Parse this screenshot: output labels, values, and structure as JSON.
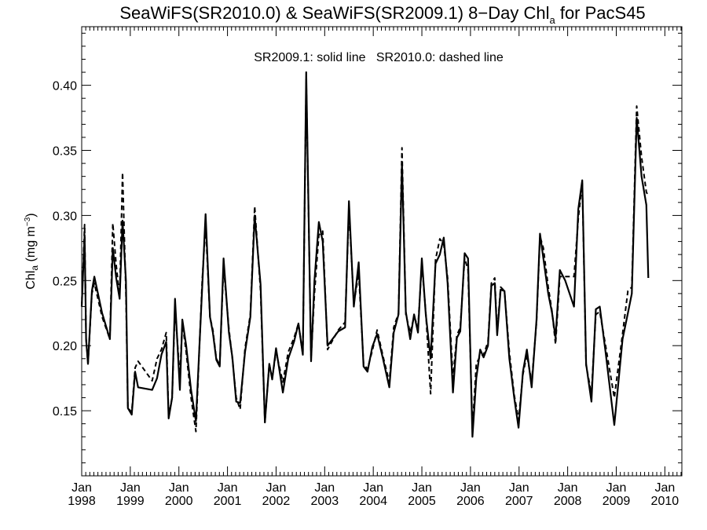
{
  "chart_data": {
    "type": "line",
    "title": {
      "prefix": "SeaWiFS(SR2010.0) & SeaWiFS(SR2009.1) 8−Day Chl",
      "subscript": "a",
      "suffix": " for PacS45"
    },
    "subtitle": "SR2009.1: solid line   SR2010.0: dashed line",
    "ylabel": {
      "prefix": "Chl",
      "subscript": "a",
      "units_prefix": " (mg m",
      "units_superscript": "−3",
      "units_suffix": ")"
    },
    "xlim": [
      1998.0,
      2010.35
    ],
    "ylim": [
      0.1,
      0.445
    ],
    "y_ticks": [
      {
        "value": 0.15,
        "label": "0.15"
      },
      {
        "value": 0.2,
        "label": "0.20"
      },
      {
        "value": 0.25,
        "label": "0.25"
      },
      {
        "value": 0.3,
        "label": "0.30"
      },
      {
        "value": 0.35,
        "label": "0.35"
      },
      {
        "value": 0.4,
        "label": "0.40"
      }
    ],
    "x_ticks": [
      {
        "value": 1998,
        "month": "Jan",
        "year": "1998"
      },
      {
        "value": 1999,
        "month": "Jan",
        "year": "1999"
      },
      {
        "value": 2000,
        "month": "Jan",
        "year": "2000"
      },
      {
        "value": 2001,
        "month": "Jan",
        "year": "2001"
      },
      {
        "value": 2002,
        "month": "Jan",
        "year": "2002"
      },
      {
        "value": 2003,
        "month": "Jan",
        "year": "2003"
      },
      {
        "value": 2004,
        "month": "Jan",
        "year": "2004"
      },
      {
        "value": 2005,
        "month": "Jan",
        "year": "2005"
      },
      {
        "value": 2006,
        "month": "Jan",
        "year": "2006"
      },
      {
        "value": 2007,
        "month": "Jan",
        "year": "2007"
      },
      {
        "value": 2008,
        "month": "Jan",
        "year": "2008"
      },
      {
        "value": 2009,
        "month": "Jan",
        "year": "2009"
      },
      {
        "value": 2010,
        "month": "Jan",
        "year": "2010"
      }
    ],
    "series": [
      {
        "style": "solid",
        "points": [
          [
            1998.0,
            0.23
          ],
          [
            1998.06,
            0.285
          ],
          [
            1998.09,
            0.205
          ],
          [
            1998.13,
            0.186
          ],
          [
            1998.21,
            0.242
          ],
          [
            1998.26,
            0.253
          ],
          [
            1998.42,
            0.225
          ],
          [
            1998.58,
            0.205
          ],
          [
            1998.64,
            0.275
          ],
          [
            1998.71,
            0.252
          ],
          [
            1998.78,
            0.236
          ],
          [
            1998.84,
            0.296
          ],
          [
            1998.91,
            0.25
          ],
          [
            1998.95,
            0.152
          ],
          [
            1999.03,
            0.147
          ],
          [
            1999.1,
            0.18
          ],
          [
            1999.16,
            0.168
          ],
          [
            1999.45,
            0.166
          ],
          [
            1999.55,
            0.175
          ],
          [
            1999.64,
            0.193
          ],
          [
            1999.74,
            0.203
          ],
          [
            1999.79,
            0.144
          ],
          [
            1999.86,
            0.16
          ],
          [
            1999.92,
            0.236
          ],
          [
            2000.02,
            0.166
          ],
          [
            2000.07,
            0.22
          ],
          [
            2000.15,
            0.2
          ],
          [
            2000.25,
            0.166
          ],
          [
            2000.35,
            0.142
          ],
          [
            2000.48,
            0.245
          ],
          [
            2000.55,
            0.301
          ],
          [
            2000.64,
            0.222
          ],
          [
            2000.7,
            0.21
          ],
          [
            2000.77,
            0.189
          ],
          [
            2000.84,
            0.184
          ],
          [
            2000.92,
            0.267
          ],
          [
            2001.03,
            0.21
          ],
          [
            2001.1,
            0.191
          ],
          [
            2001.18,
            0.157
          ],
          [
            2001.26,
            0.156
          ],
          [
            2001.36,
            0.195
          ],
          [
            2001.47,
            0.222
          ],
          [
            2001.56,
            0.3
          ],
          [
            2001.68,
            0.247
          ],
          [
            2001.77,
            0.141
          ],
          [
            2001.86,
            0.186
          ],
          [
            2001.92,
            0.174
          ],
          [
            2002.0,
            0.198
          ],
          [
            2002.14,
            0.164
          ],
          [
            2002.25,
            0.19
          ],
          [
            2002.37,
            0.203
          ],
          [
            2002.46,
            0.217
          ],
          [
            2002.55,
            0.193
          ],
          [
            2002.62,
            0.41
          ],
          [
            2002.72,
            0.188
          ],
          [
            2002.79,
            0.25
          ],
          [
            2002.88,
            0.295
          ],
          [
            2002.96,
            0.28
          ],
          [
            2003.06,
            0.2
          ],
          [
            2003.28,
            0.211
          ],
          [
            2003.42,
            0.214
          ],
          [
            2003.5,
            0.311
          ],
          [
            2003.6,
            0.23
          ],
          [
            2003.7,
            0.264
          ],
          [
            2003.8,
            0.184
          ],
          [
            2003.88,
            0.18
          ],
          [
            2003.98,
            0.199
          ],
          [
            2004.08,
            0.209
          ],
          [
            2004.2,
            0.19
          ],
          [
            2004.33,
            0.168
          ],
          [
            2004.42,
            0.21
          ],
          [
            2004.52,
            0.224
          ],
          [
            2004.59,
            0.34
          ],
          [
            2004.67,
            0.226
          ],
          [
            2004.76,
            0.205
          ],
          [
            2004.84,
            0.224
          ],
          [
            2004.92,
            0.21
          ],
          [
            2005.0,
            0.267
          ],
          [
            2005.08,
            0.224
          ],
          [
            2005.18,
            0.19
          ],
          [
            2005.28,
            0.263
          ],
          [
            2005.37,
            0.27
          ],
          [
            2005.45,
            0.283
          ],
          [
            2005.53,
            0.248
          ],
          [
            2005.64,
            0.164
          ],
          [
            2005.72,
            0.206
          ],
          [
            2005.79,
            0.211
          ],
          [
            2005.88,
            0.271
          ],
          [
            2005.95,
            0.267
          ],
          [
            2006.04,
            0.13
          ],
          [
            2006.12,
            0.175
          ],
          [
            2006.2,
            0.197
          ],
          [
            2006.27,
            0.191
          ],
          [
            2006.36,
            0.2
          ],
          [
            2006.43,
            0.246
          ],
          [
            2006.5,
            0.248
          ],
          [
            2006.55,
            0.208
          ],
          [
            2006.62,
            0.243
          ],
          [
            2006.7,
            0.242
          ],
          [
            2006.8,
            0.19
          ],
          [
            2006.9,
            0.16
          ],
          [
            2006.99,
            0.137
          ],
          [
            2007.08,
            0.18
          ],
          [
            2007.16,
            0.197
          ],
          [
            2007.26,
            0.168
          ],
          [
            2007.36,
            0.22
          ],
          [
            2007.43,
            0.286
          ],
          [
            2007.5,
            0.267
          ],
          [
            2007.6,
            0.24
          ],
          [
            2007.68,
            0.225
          ],
          [
            2007.75,
            0.206
          ],
          [
            2007.84,
            0.258
          ],
          [
            2007.95,
            0.25
          ],
          [
            2008.13,
            0.23
          ],
          [
            2008.22,
            0.305
          ],
          [
            2008.3,
            0.327
          ],
          [
            2008.38,
            0.186
          ],
          [
            2008.49,
            0.157
          ],
          [
            2008.58,
            0.228
          ],
          [
            2008.66,
            0.23
          ],
          [
            2008.78,
            0.195
          ],
          [
            2008.96,
            0.139
          ],
          [
            2009.13,
            0.205
          ],
          [
            2009.24,
            0.225
          ],
          [
            2009.32,
            0.24
          ],
          [
            2009.42,
            0.375
          ],
          [
            2009.52,
            0.33
          ],
          [
            2009.62,
            0.308
          ],
          [
            2009.66,
            0.252
          ]
        ]
      },
      {
        "style": "dashed",
        "points": [
          [
            1998.0,
            0.23
          ],
          [
            1998.06,
            0.293
          ],
          [
            1998.09,
            0.205
          ],
          [
            1998.13,
            0.186
          ],
          [
            1998.21,
            0.24
          ],
          [
            1998.26,
            0.248
          ],
          [
            1998.42,
            0.222
          ],
          [
            1998.58,
            0.205
          ],
          [
            1998.64,
            0.294
          ],
          [
            1998.71,
            0.262
          ],
          [
            1998.78,
            0.238
          ],
          [
            1998.84,
            0.333
          ],
          [
            1998.91,
            0.24
          ],
          [
            1998.95,
            0.152
          ],
          [
            1999.03,
            0.149
          ],
          [
            1999.1,
            0.183
          ],
          [
            1999.16,
            0.188
          ],
          [
            1999.45,
            0.173
          ],
          [
            1999.55,
            0.19
          ],
          [
            1999.64,
            0.197
          ],
          [
            1999.74,
            0.21
          ],
          [
            1999.79,
            0.146
          ],
          [
            1999.86,
            0.16
          ],
          [
            1999.92,
            0.23
          ],
          [
            2000.02,
            0.175
          ],
          [
            2000.07,
            0.218
          ],
          [
            2000.15,
            0.195
          ],
          [
            2000.25,
            0.16
          ],
          [
            2000.35,
            0.134
          ],
          [
            2000.48,
            0.25
          ],
          [
            2000.55,
            0.293
          ],
          [
            2000.64,
            0.222
          ],
          [
            2000.7,
            0.212
          ],
          [
            2000.77,
            0.19
          ],
          [
            2000.84,
            0.185
          ],
          [
            2000.92,
            0.261
          ],
          [
            2001.03,
            0.213
          ],
          [
            2001.1,
            0.19
          ],
          [
            2001.18,
            0.16
          ],
          [
            2001.26,
            0.151
          ],
          [
            2001.36,
            0.198
          ],
          [
            2001.47,
            0.224
          ],
          [
            2001.56,
            0.307
          ],
          [
            2001.68,
            0.242
          ],
          [
            2001.77,
            0.141
          ],
          [
            2001.86,
            0.186
          ],
          [
            2001.92,
            0.175
          ],
          [
            2002.0,
            0.195
          ],
          [
            2002.14,
            0.172
          ],
          [
            2002.25,
            0.195
          ],
          [
            2002.37,
            0.206
          ],
          [
            2002.46,
            0.217
          ],
          [
            2002.55,
            0.193
          ],
          [
            2002.62,
            0.405
          ],
          [
            2002.72,
            0.19
          ],
          [
            2002.79,
            0.24
          ],
          [
            2002.88,
            0.285
          ],
          [
            2002.96,
            0.288
          ],
          [
            2003.06,
            0.197
          ],
          [
            2003.28,
            0.212
          ],
          [
            2003.42,
            0.218
          ],
          [
            2003.5,
            0.305
          ],
          [
            2003.6,
            0.232
          ],
          [
            2003.7,
            0.256
          ],
          [
            2003.8,
            0.186
          ],
          [
            2003.88,
            0.182
          ],
          [
            2003.98,
            0.196
          ],
          [
            2004.08,
            0.212
          ],
          [
            2004.2,
            0.192
          ],
          [
            2004.33,
            0.172
          ],
          [
            2004.42,
            0.214
          ],
          [
            2004.52,
            0.225
          ],
          [
            2004.59,
            0.352
          ],
          [
            2004.67,
            0.224
          ],
          [
            2004.76,
            0.21
          ],
          [
            2004.84,
            0.222
          ],
          [
            2004.92,
            0.215
          ],
          [
            2005.0,
            0.262
          ],
          [
            2005.08,
            0.226
          ],
          [
            2005.18,
            0.163
          ],
          [
            2005.28,
            0.266
          ],
          [
            2005.37,
            0.282
          ],
          [
            2005.45,
            0.278
          ],
          [
            2005.53,
            0.252
          ],
          [
            2005.64,
            0.175
          ],
          [
            2005.72,
            0.208
          ],
          [
            2005.79,
            0.214
          ],
          [
            2005.88,
            0.267
          ],
          [
            2005.95,
            0.258
          ],
          [
            2006.04,
            0.136
          ],
          [
            2006.12,
            0.186
          ],
          [
            2006.2,
            0.192
          ],
          [
            2006.27,
            0.193
          ],
          [
            2006.36,
            0.203
          ],
          [
            2006.43,
            0.248
          ],
          [
            2006.5,
            0.252
          ],
          [
            2006.55,
            0.21
          ],
          [
            2006.62,
            0.245
          ],
          [
            2006.7,
            0.242
          ],
          [
            2006.8,
            0.195
          ],
          [
            2006.9,
            0.162
          ],
          [
            2006.99,
            0.143
          ],
          [
            2007.08,
            0.178
          ],
          [
            2007.16,
            0.193
          ],
          [
            2007.26,
            0.172
          ],
          [
            2007.36,
            0.218
          ],
          [
            2007.43,
            0.284
          ],
          [
            2007.5,
            0.275
          ],
          [
            2007.6,
            0.245
          ],
          [
            2007.68,
            0.226
          ],
          [
            2007.75,
            0.201
          ],
          [
            2007.84,
            0.253
          ],
          [
            2007.95,
            0.253
          ],
          [
            2008.13,
            0.253
          ],
          [
            2008.22,
            0.298
          ],
          [
            2008.3,
            0.325
          ],
          [
            2008.38,
            0.185
          ],
          [
            2008.49,
            0.163
          ],
          [
            2008.58,
            0.224
          ],
          [
            2008.66,
            0.226
          ],
          [
            2008.78,
            0.2
          ],
          [
            2008.96,
            0.16
          ],
          [
            2009.13,
            0.209
          ],
          [
            2009.24,
            0.242
          ],
          [
            2009.32,
            0.245
          ],
          [
            2009.42,
            0.384
          ],
          [
            2009.52,
            0.345
          ],
          [
            2009.62,
            0.318
          ],
          [
            2009.66,
            0.315
          ]
        ]
      }
    ]
  }
}
